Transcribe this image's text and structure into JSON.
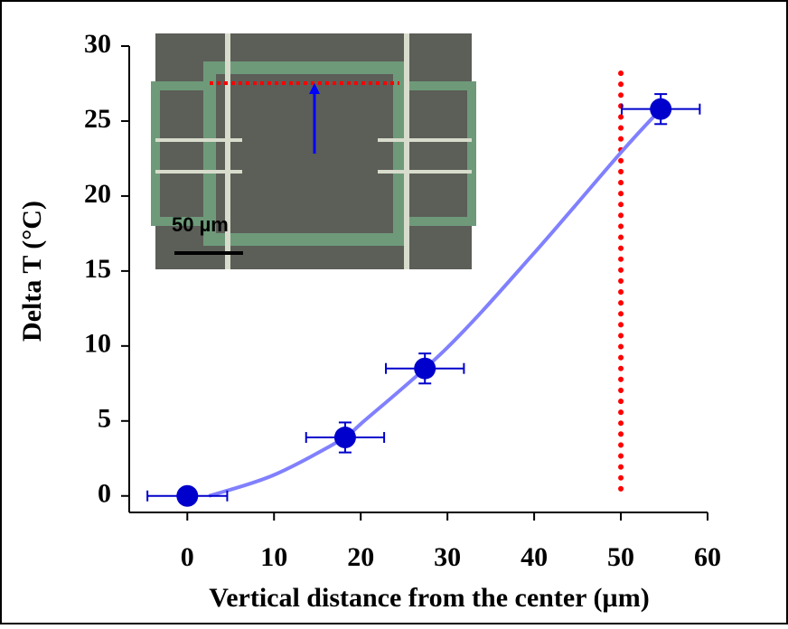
{
  "chart_data": {
    "type": "scatter",
    "x_label": "Vertical distance from the center (µm)",
    "y_label": "Delta T (°C)",
    "xlim": [
      -6.7,
      60
    ],
    "xticks": [
      0,
      10,
      20,
      30,
      40,
      50,
      60
    ],
    "ylim": [
      -1.1,
      30
    ],
    "yticks": [
      0,
      5,
      10,
      15,
      20,
      25,
      30
    ],
    "series": [
      {
        "color": "#0000cc",
        "x": [
          0,
          18.2,
          27.4,
          54.6
        ],
        "y": [
          0,
          3.9,
          8.5,
          25.8
        ],
        "x_err": [
          4.6,
          4.5,
          4.5,
          4.5
        ],
        "y_err": [
          0,
          1,
          1,
          1
        ]
      }
    ],
    "fit": {
      "color": "#8080ff",
      "x": [
        2.5,
        10,
        18.2,
        20,
        30,
        40,
        50,
        54.6
      ],
      "y": [
        0,
        1.4,
        3.9,
        4.8,
        9.9,
        16.2,
        22.9,
        25.8
      ]
    },
    "vline": {
      "x": 50,
      "color": "#ff0000"
    },
    "inset": {
      "scale_label": "50 µm"
    }
  }
}
